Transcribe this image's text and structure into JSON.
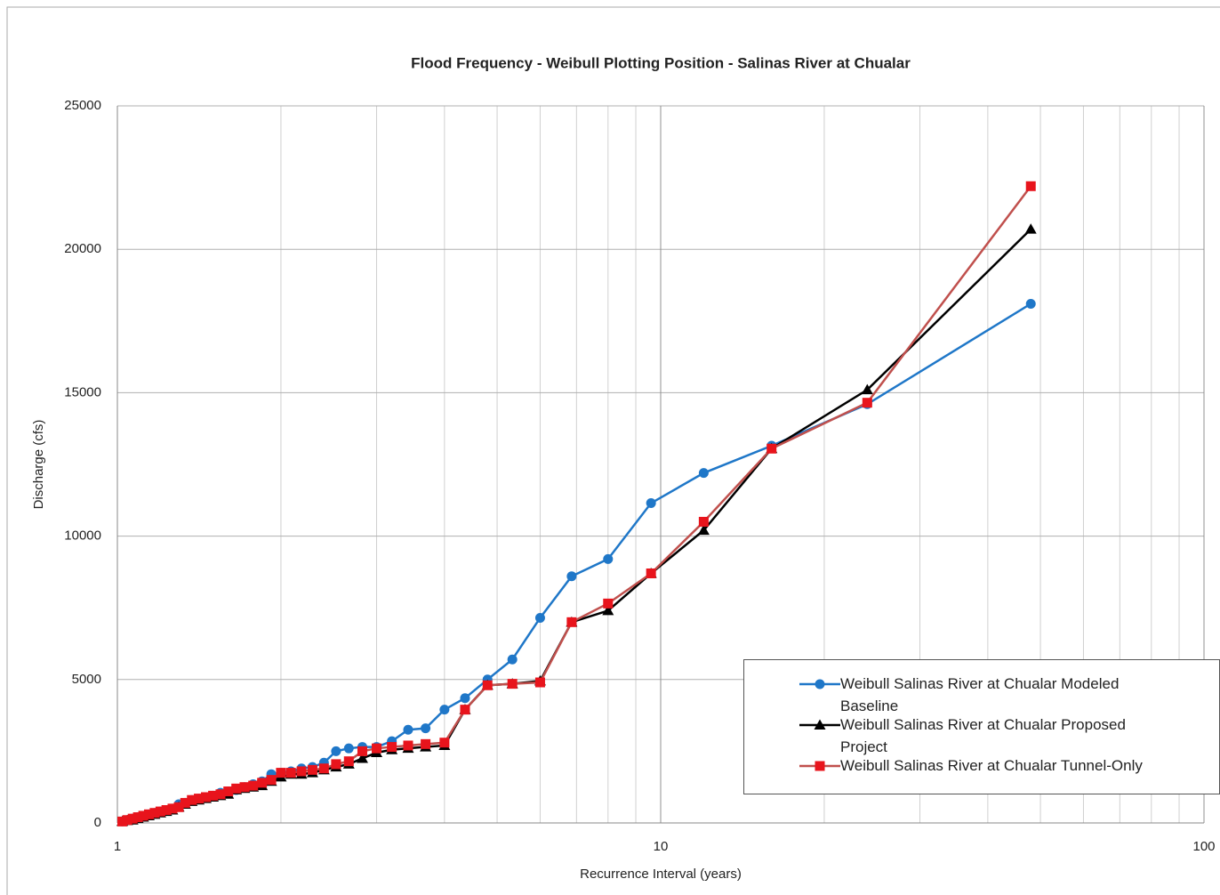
{
  "chart_data": {
    "type": "line",
    "title": "Flood Frequency - Weibull Plotting Position - Salinas River at Chualar",
    "x_label": "Recurrence Interval (years)",
    "y_label": "Discharge (cfs)",
    "x_log": true,
    "grid": true,
    "xlim": [
      1,
      100
    ],
    "xticks": [
      1,
      10,
      100
    ],
    "xminor_ticks": [
      2,
      3,
      4,
      5,
      6,
      7,
      8,
      9,
      20,
      30,
      40,
      50,
      60,
      70,
      80,
      90
    ],
    "ylim": [
      0,
      25000
    ],
    "yticks": [
      0,
      5000,
      10000,
      15000,
      20000,
      25000
    ],
    "legend": "bottom-right",
    "x": [
      48,
      24,
      16,
      12,
      9.6,
      8,
      6.857,
      6,
      5.333,
      4.8,
      4.364,
      4,
      3.692,
      3.429,
      3.2,
      3,
      2.824,
      2.667,
      2.526,
      2.4,
      2.286,
      2.182,
      2.087,
      2,
      1.92,
      1.846,
      1.778,
      1.714,
      1.655,
      1.6,
      1.548,
      1.5,
      1.455,
      1.412,
      1.371,
      1.333,
      1.297,
      1.263,
      1.231,
      1.2,
      1.171,
      1.143,
      1.116,
      1.091,
      1.067,
      1.043,
      1.021
    ],
    "series": [
      {
        "name": "Weibull Salinas River at Chualar Modeled Baseline",
        "color": "#1f77c8",
        "marker": "circle",
        "values": [
          18100,
          14600,
          13150,
          12200,
          11150,
          9200,
          8600,
          7150,
          5700,
          5000,
          4350,
          3950,
          3300,
          3250,
          2850,
          2650,
          2650,
          2600,
          2500,
          2100,
          1950,
          1900,
          1800,
          1750,
          1700,
          1450,
          1350,
          1250,
          1150,
          1100,
          1050,
          950,
          900,
          850,
          800,
          700,
          650,
          500,
          450,
          400,
          350,
          300,
          250,
          200,
          150,
          100,
          50
        ]
      },
      {
        "name": "Weibull Salinas River at Chualar Proposed Project",
        "color": "#000000",
        "marker": "triangle",
        "values": [
          20700,
          15100,
          13050,
          10200,
          8700,
          7400,
          7000,
          4950,
          4850,
          4800,
          3950,
          2700,
          2650,
          2600,
          2550,
          2450,
          2250,
          2050,
          1950,
          1850,
          1750,
          1700,
          1700,
          1600,
          1450,
          1300,
          1250,
          1200,
          1150,
          1000,
          950,
          900,
          850,
          800,
          750,
          650,
          550,
          450,
          400,
          350,
          300,
          250,
          200,
          150,
          100,
          80,
          50
        ]
      },
      {
        "name": "Weibull Salinas River at Chualar Tunnel-Only",
        "color": "#e8141c",
        "line_color": "#c0504d",
        "marker": "square",
        "values": [
          22200,
          14650,
          13050,
          10500,
          8700,
          7650,
          7000,
          4900,
          4850,
          4800,
          3950,
          2800,
          2750,
          2700,
          2650,
          2600,
          2500,
          2150,
          2050,
          1900,
          1850,
          1800,
          1750,
          1750,
          1500,
          1400,
          1300,
          1250,
          1200,
          1100,
          1000,
          950,
          900,
          850,
          800,
          700,
          550,
          500,
          450,
          400,
          350,
          300,
          250,
          200,
          150,
          100,
          50
        ]
      }
    ]
  }
}
